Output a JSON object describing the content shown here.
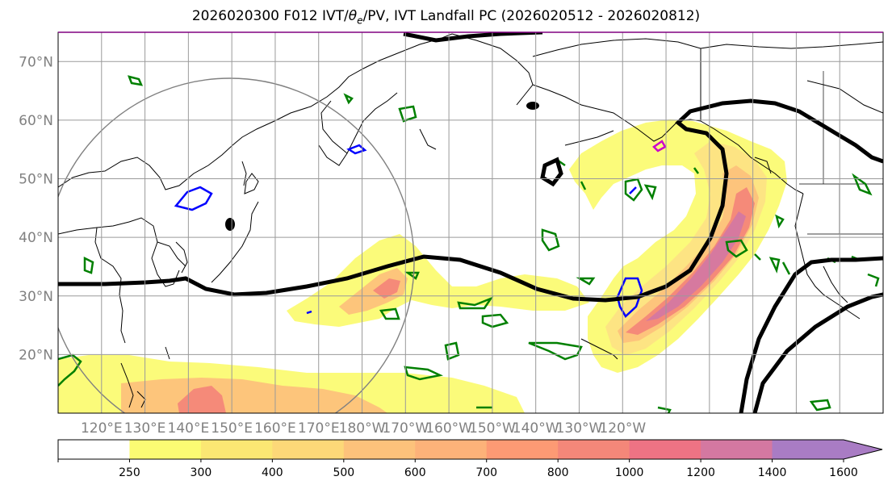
{
  "title": {
    "prefix": "2026020300 F012 IVT/",
    "theta": "θ",
    "theta_sub": "e",
    "suffix": "/PV, IVT Landfall PC (2026020512 - 2026020812)"
  },
  "colors": {
    "grid": "#9a9a9a",
    "coast": "#000000",
    "pv_contour": "#000000",
    "green_contour": "#008000",
    "blue_contour": "#0000ff",
    "magenta_contour": "#cc00cc",
    "circle": "#808080",
    "axis_label": "#808080"
  },
  "map": {
    "lon_range": [
      110,
      300
    ],
    "lat_range": [
      10,
      75
    ],
    "lat_ticks": [
      {
        "value": 20,
        "label": "20°N"
      },
      {
        "value": 30,
        "label": "30°N"
      },
      {
        "value": 40,
        "label": "40°N"
      },
      {
        "value": 50,
        "label": "50°N"
      },
      {
        "value": 60,
        "label": "60°N"
      },
      {
        "value": 70,
        "label": "70°N"
      }
    ],
    "lon_ticks": [
      {
        "value": 120,
        "label": "120°E"
      },
      {
        "value": 130,
        "label": "130°E"
      },
      {
        "value": 140,
        "label": "140°E"
      },
      {
        "value": 150,
        "label": "150°E"
      },
      {
        "value": 160,
        "label": "160°E"
      },
      {
        "value": 170,
        "label": "170°E"
      },
      {
        "value": 180,
        "label": "180°W"
      },
      {
        "value": 190,
        "label": "170°W"
      },
      {
        "value": 200,
        "label": "160°W"
      },
      {
        "value": 210,
        "label": "150°W"
      },
      {
        "value": 220,
        "label": "140°W"
      },
      {
        "value": 230,
        "label": "130°W"
      },
      {
        "value": 240,
        "label": "120°W"
      }
    ],
    "grid_lons": [
      120,
      130,
      140,
      150,
      160,
      170,
      180,
      190,
      200,
      210,
      220,
      230,
      240,
      250,
      260,
      270,
      280,
      290
    ],
    "grid_lats": [
      20,
      30,
      40,
      50,
      60,
      70
    ]
  },
  "colorbar": {
    "levels": [
      250,
      300,
      400,
      500,
      600,
      700,
      800,
      1000,
      1200,
      1400,
      1600
    ],
    "labels": [
      "250",
      "300",
      "400",
      "500",
      "600",
      "700",
      "800",
      "1000",
      "1200",
      "1400",
      "1600"
    ],
    "colors": [
      "#ffffff",
      "#fbfb73",
      "#fbe773",
      "#fdd878",
      "#fdc27b",
      "#fdb279",
      "#fd9a74",
      "#f48779",
      "#ee7384",
      "#d478a1",
      "#a97cc4",
      "#a97cc4"
    ]
  }
}
